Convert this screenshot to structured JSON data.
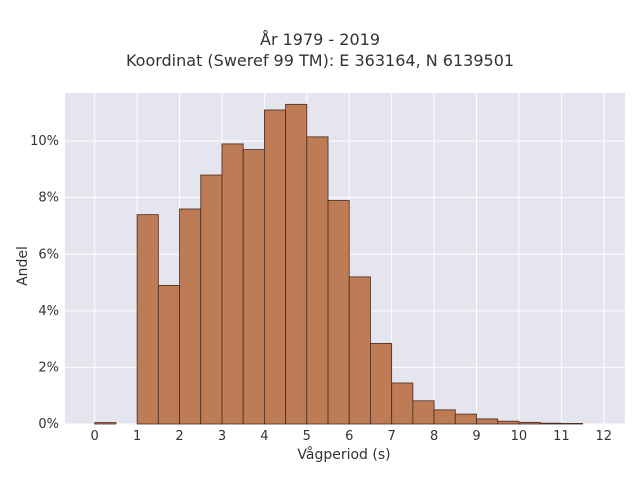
{
  "chart_data": {
    "type": "bar",
    "title": "År 1979 - 2019",
    "subtitle": "Koordinat (Sweref 99 TM): E 363164, N 6139501",
    "xlabel": "Vågperiod (s)",
    "ylabel": "Andel",
    "xlim": [
      -0.7,
      12.5
    ],
    "ylim": [
      0,
      11.7
    ],
    "x_ticks": [
      0,
      1,
      2,
      3,
      4,
      5,
      6,
      7,
      8,
      9,
      10,
      11,
      12
    ],
    "y_ticks": [
      0,
      2,
      4,
      6,
      8,
      10
    ],
    "y_tick_labels": [
      "0%",
      "2%",
      "4%",
      "6%",
      "8%",
      "10%"
    ],
    "bin_width": 0.5,
    "bins": [
      {
        "x0": 0.0,
        "x1": 0.5,
        "value": 0.05
      },
      {
        "x0": 1.0,
        "x1": 1.5,
        "value": 7.4
      },
      {
        "x0": 1.5,
        "x1": 2.0,
        "value": 4.9
      },
      {
        "x0": 2.0,
        "x1": 2.5,
        "value": 7.6
      },
      {
        "x0": 2.5,
        "x1": 3.0,
        "value": 8.8
      },
      {
        "x0": 3.0,
        "x1": 3.5,
        "value": 9.9
      },
      {
        "x0": 3.5,
        "x1": 4.0,
        "value": 9.7
      },
      {
        "x0": 4.0,
        "x1": 4.5,
        "value": 11.1
      },
      {
        "x0": 4.5,
        "x1": 5.0,
        "value": 11.3
      },
      {
        "x0": 5.0,
        "x1": 5.5,
        "value": 10.15
      },
      {
        "x0": 5.5,
        "x1": 6.0,
        "value": 7.9
      },
      {
        "x0": 6.0,
        "x1": 6.5,
        "value": 5.2
      },
      {
        "x0": 6.5,
        "x1": 7.0,
        "value": 2.85
      },
      {
        "x0": 7.0,
        "x1": 7.5,
        "value": 1.45
      },
      {
        "x0": 7.5,
        "x1": 8.0,
        "value": 0.82
      },
      {
        "x0": 8.0,
        "x1": 8.5,
        "value": 0.5
      },
      {
        "x0": 8.5,
        "x1": 9.0,
        "value": 0.35
      },
      {
        "x0": 9.0,
        "x1": 9.5,
        "value": 0.18
      },
      {
        "x0": 9.5,
        "x1": 10.0,
        "value": 0.1
      },
      {
        "x0": 10.0,
        "x1": 10.5,
        "value": 0.06
      },
      {
        "x0": 10.5,
        "x1": 11.0,
        "value": 0.03
      },
      {
        "x0": 11.0,
        "x1": 11.5,
        "value": 0.02
      }
    ],
    "bar_color": "#bd7b56",
    "bar_edge_color": "#4a2a1a",
    "plot_background": "#e5e5ef",
    "grid": true,
    "grid_color": "#ffffff"
  }
}
